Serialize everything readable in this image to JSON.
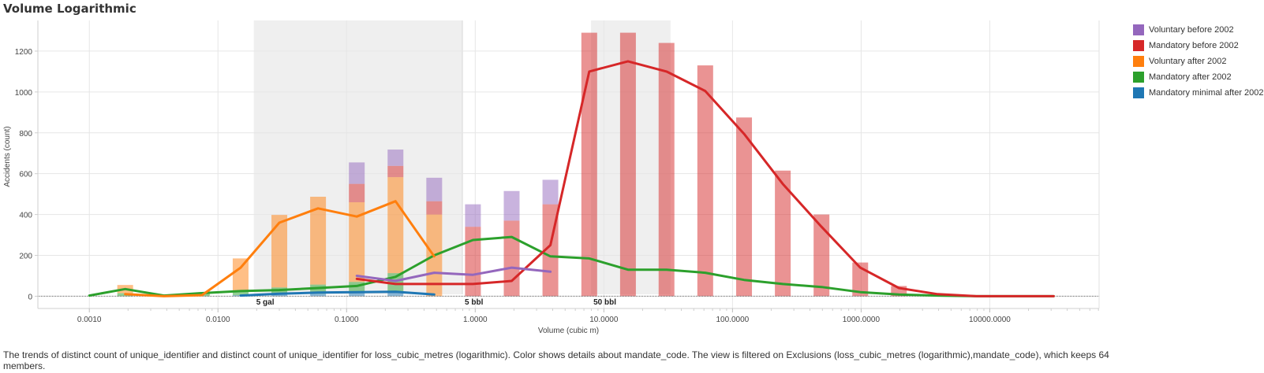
{
  "title": "Volume Logarithmic",
  "caption": "The trends of distinct count of unique_identifier and distinct count of unique_identifier for loss_cubic_metres (logarithmic).  Color shows details about mandate_code. The view is filtered on Exclusions (loss_cubic_metres (logarithmic),mandate_code), which keeps 64 members.",
  "legend": [
    {
      "label": "Voluntary before 2002",
      "color": "#9467bd"
    },
    {
      "label": "Mandatory before 2002",
      "color": "#d62728"
    },
    {
      "label": "Voluntary after 2002",
      "color": "#ff7f0e"
    },
    {
      "label": "Mandatory after 2002",
      "color": "#2ca02c"
    },
    {
      "label": "Mandatory minimal after 2002",
      "color": "#1f77b4"
    }
  ],
  "chart_data": {
    "type": "bar",
    "title": "Volume Logarithmic",
    "xlabel": "Volume (cubic m)",
    "ylabel": "Accidents (count)",
    "xscale": "log",
    "xlim_log10": [
      -3.4,
      4.85
    ],
    "ylim": [
      -60,
      1350
    ],
    "x_ticks": [
      {
        "value": 0.001,
        "label": "0.0010"
      },
      {
        "value": 0.01,
        "label": "0.0100"
      },
      {
        "value": 0.1,
        "label": "0.1000"
      },
      {
        "value": 1,
        "label": "1.0000"
      },
      {
        "value": 10,
        "label": "10.0000"
      },
      {
        "value": 100,
        "label": "100.0000"
      },
      {
        "value": 1000,
        "label": "1000.0000"
      },
      {
        "value": 10000,
        "label": "10000.0000"
      }
    ],
    "y_ticks": [
      0,
      200,
      400,
      600,
      800,
      1000,
      1200
    ],
    "reference_bands": [
      {
        "from": 0.019,
        "to": 0.795,
        "label": "5 gal"
      },
      {
        "from": 7.95,
        "to": 33.0,
        "label": "50 bbl"
      }
    ],
    "reference_lines": [
      {
        "at": 0.795,
        "label": "5 bbl"
      }
    ],
    "bins": [
      0.0019,
      0.0038,
      0.0075,
      0.015,
      0.03,
      0.06,
      0.12,
      0.24,
      0.48,
      0.96,
      1.92,
      3.84,
      7.7,
      15.4,
      30.7,
      61.4,
      123,
      246,
      492,
      984,
      1966
    ],
    "bar_series": [
      {
        "name": "Mandatory minimal after 2002",
        "color": "#1f77b4",
        "values": [
          0,
          0,
          0,
          5,
          8,
          12,
          20,
          18,
          0,
          0,
          0,
          0,
          0,
          0,
          0,
          0,
          0,
          0,
          0,
          0,
          0
        ]
      },
      {
        "name": "Mandatory after 2002",
        "color": "#2ca02c",
        "values": [
          15,
          8,
          12,
          20,
          35,
          45,
          50,
          95,
          0,
          0,
          0,
          0,
          0,
          0,
          0,
          0,
          0,
          0,
          0,
          0,
          0
        ]
      },
      {
        "name": "Voluntary after 2002",
        "color": "#ff7f0e",
        "values": [
          40,
          0,
          0,
          160,
          355,
          430,
          390,
          470,
          400,
          0,
          0,
          0,
          0,
          0,
          0,
          0,
          0,
          0,
          0,
          0,
          0
        ]
      },
      {
        "name": "Mandatory before 2002",
        "color": "#d62728",
        "values": [
          0,
          0,
          0,
          0,
          0,
          0,
          90,
          55,
          65,
          340,
          370,
          450,
          1290,
          1290,
          1240,
          1130,
          875,
          615,
          400,
          165,
          50
        ]
      },
      {
        "name": "Voluntary before 2002",
        "color": "#9467bd",
        "values": [
          0,
          0,
          0,
          0,
          0,
          0,
          105,
          80,
          115,
          110,
          145,
          120,
          0,
          0,
          0,
          0,
          0,
          0,
          0,
          0,
          0
        ]
      }
    ],
    "line_series": [
      {
        "name": "Mandatory after 2002",
        "color": "#2ca02c",
        "x": [
          0.001,
          0.0019,
          0.0038,
          0.0075,
          0.015,
          0.03,
          0.06,
          0.12,
          0.24,
          0.48,
          0.96,
          1.92,
          3.84,
          7.7,
          15.4,
          30.7,
          61.4,
          123,
          246,
          492,
          984,
          1966,
          3930,
          7860,
          15700,
          31400
        ],
        "y": [
          3,
          35,
          3,
          15,
          25,
          30,
          40,
          50,
          95,
          200,
          275,
          290,
          195,
          185,
          130,
          130,
          115,
          80,
          60,
          45,
          20,
          8,
          3,
          0,
          0,
          0
        ]
      },
      {
        "name": "Voluntary after 2002",
        "color": "#ff7f0e",
        "x": [
          0.0019,
          0.0038,
          0.0075,
          0.015,
          0.03,
          0.06,
          0.12,
          0.24,
          0.48
        ],
        "y": [
          10,
          0,
          5,
          140,
          360,
          430,
          390,
          465,
          195
        ]
      },
      {
        "name": "Mandatory before 2002",
        "color": "#d62728",
        "x": [
          0.12,
          0.24,
          0.48,
          0.96,
          1.92,
          3.84,
          7.7,
          15.4,
          30.7,
          61.4,
          123,
          246,
          492,
          984,
          1966,
          3930,
          7860,
          15700,
          31400
        ],
        "y": [
          85,
          60,
          60,
          60,
          75,
          250,
          1100,
          1150,
          1100,
          1005,
          795,
          550,
          340,
          140,
          40,
          10,
          0,
          0,
          0
        ]
      },
      {
        "name": "Voluntary before 2002",
        "color": "#9467bd",
        "x": [
          0.12,
          0.24,
          0.48,
          0.96,
          1.92,
          3.84
        ],
        "y": [
          100,
          75,
          115,
          105,
          140,
          120
        ]
      },
      {
        "name": "Mandatory minimal after 2002",
        "color": "#1f77b4",
        "x": [
          0.015,
          0.03,
          0.06,
          0.12,
          0.24,
          0.48
        ],
        "y": [
          3,
          12,
          18,
          20,
          22,
          8
        ]
      }
    ]
  }
}
